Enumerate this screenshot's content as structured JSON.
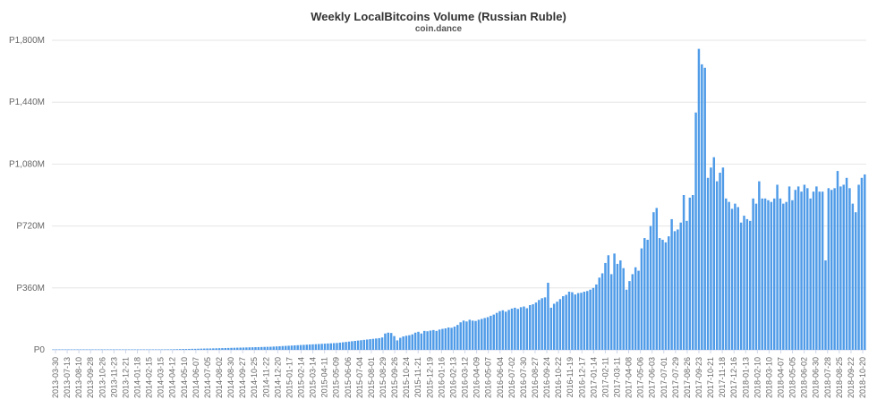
{
  "chart_data": {
    "type": "bar",
    "title": "Weekly LocalBitcoins Volume (Russian Ruble)",
    "subtitle": "coin.dance",
    "xlabel": "",
    "ylabel": "",
    "ylim": [
      0,
      1800000000
    ],
    "y_ticks": [
      {
        "value": 0,
        "label": "P0"
      },
      {
        "value": 360000000,
        "label": "P360M"
      },
      {
        "value": 720000000,
        "label": "P720M"
      },
      {
        "value": 1080000000,
        "label": "P1,080M"
      },
      {
        "value": 1440000000,
        "label": "P1,440M"
      },
      {
        "value": 1800000000,
        "label": "P1,800M"
      }
    ],
    "x_tick_labels": [
      "2013-03-30",
      "2013-07-13",
      "2013-08-10",
      "2013-09-28",
      "2013-10-26",
      "2013-11-23",
      "2013-12-21",
      "2014-01-18",
      "2014-02-15",
      "2014-03-15",
      "2014-04-12",
      "2014-05-10",
      "2014-06-07",
      "2014-07-05",
      "2014-08-02",
      "2014-08-30",
      "2014-09-27",
      "2014-10-25",
      "2014-11-22",
      "2014-12-20",
      "2015-01-17",
      "2015-02-14",
      "2015-03-14",
      "2015-04-11",
      "2015-05-09",
      "2015-06-06",
      "2015-07-04",
      "2015-08-01",
      "2015-08-29",
      "2015-09-26",
      "2015-10-24",
      "2015-11-21",
      "2015-12-19",
      "2016-01-16",
      "2016-02-13",
      "2016-03-12",
      "2016-04-09",
      "2016-05-07",
      "2016-06-04",
      "2016-07-02",
      "2016-07-30",
      "2016-08-27",
      "2016-09-24",
      "2016-10-22",
      "2016-11-19",
      "2016-12-17",
      "2017-01-14",
      "2017-02-11",
      "2017-03-11",
      "2017-04-08",
      "2017-05-06",
      "2017-06-03",
      "2017-07-01",
      "2017-07-29",
      "2017-08-26",
      "2017-09-23",
      "2017-10-21",
      "2017-11-18",
      "2017-12-16",
      "2018-01-13",
      "2018-02-10",
      "2018-03-10",
      "2018-04-07",
      "2018-05-05",
      "2018-06-02",
      "2018-06-30",
      "2018-07-28",
      "2018-08-25",
      "2018-09-22",
      "2018-10-20"
    ],
    "bar_color": "#4f9be8",
    "grid": true,
    "values_millions": [
      0.5,
      0.5,
      0.5,
      0.6,
      0.6,
      0.7,
      0.8,
      0.9,
      1,
      1,
      1,
      1.1,
      1.2,
      1.2,
      1.3,
      1.3,
      1.4,
      1.4,
      1.5,
      1.5,
      1.6,
      1.6,
      1.7,
      1.8,
      1.8,
      1.9,
      2,
      2,
      2.1,
      2.2,
      2.2,
      2.3,
      2.4,
      2.5,
      2.5,
      2.6,
      2.7,
      2.8,
      3,
      3,
      3.5,
      4,
      4.5,
      4.8,
      5,
      5.5,
      6,
      6,
      6.5,
      7,
      7.5,
      8,
      8,
      8.5,
      9,
      9.5,
      10,
      10.5,
      11,
      11.5,
      12,
      12.5,
      13,
      13.5,
      14,
      14.5,
      15,
      15.5,
      16,
      16.5,
      17,
      17.5,
      18,
      19,
      20,
      21,
      22,
      23,
      24,
      25,
      26,
      27,
      28,
      29,
      30,
      31,
      32,
      33,
      34,
      35,
      36,
      37,
      38,
      39,
      40,
      42,
      44,
      46,
      48,
      50,
      52,
      54,
      56,
      58,
      60,
      62,
      64,
      66,
      68,
      72,
      95,
      100,
      98,
      80,
      55,
      70,
      78,
      82,
      85,
      90,
      100,
      105,
      95,
      110,
      108,
      112,
      115,
      110,
      118,
      122,
      125,
      130,
      128,
      135,
      145,
      160,
      170,
      165,
      175,
      170,
      168,
      175,
      180,
      185,
      190,
      198,
      205,
      215,
      225,
      230,
      222,
      232,
      240,
      245,
      238,
      248,
      252,
      242,
      260,
      265,
      275,
      290,
      300,
      305,
      390,
      245,
      268,
      280,
      295,
      312,
      320,
      338,
      335,
      322,
      330,
      332,
      338,
      342,
      350,
      360,
      380,
      420,
      445,
      505,
      550,
      440,
      560,
      500,
      520,
      475,
      350,
      400,
      440,
      480,
      460,
      590,
      650,
      640,
      720,
      800,
      825,
      650,
      640,
      625,
      660,
      760,
      690,
      700,
      740,
      900,
      750,
      885,
      900,
      1380,
      1750,
      1660,
      1640,
      1000,
      1060,
      1120,
      980,
      1030,
      1060,
      880,
      860,
      820,
      850,
      830,
      740,
      780,
      760,
      750,
      880,
      850,
      980,
      880,
      880,
      870,
      860,
      880,
      960,
      880,
      850,
      860,
      950,
      870,
      930,
      950,
      920,
      960,
      940,
      880,
      920,
      950,
      920,
      920,
      520,
      940,
      930,
      940,
      1040,
      950,
      960,
      1000,
      940,
      850,
      800,
      960,
      1000,
      1020
    ]
  }
}
